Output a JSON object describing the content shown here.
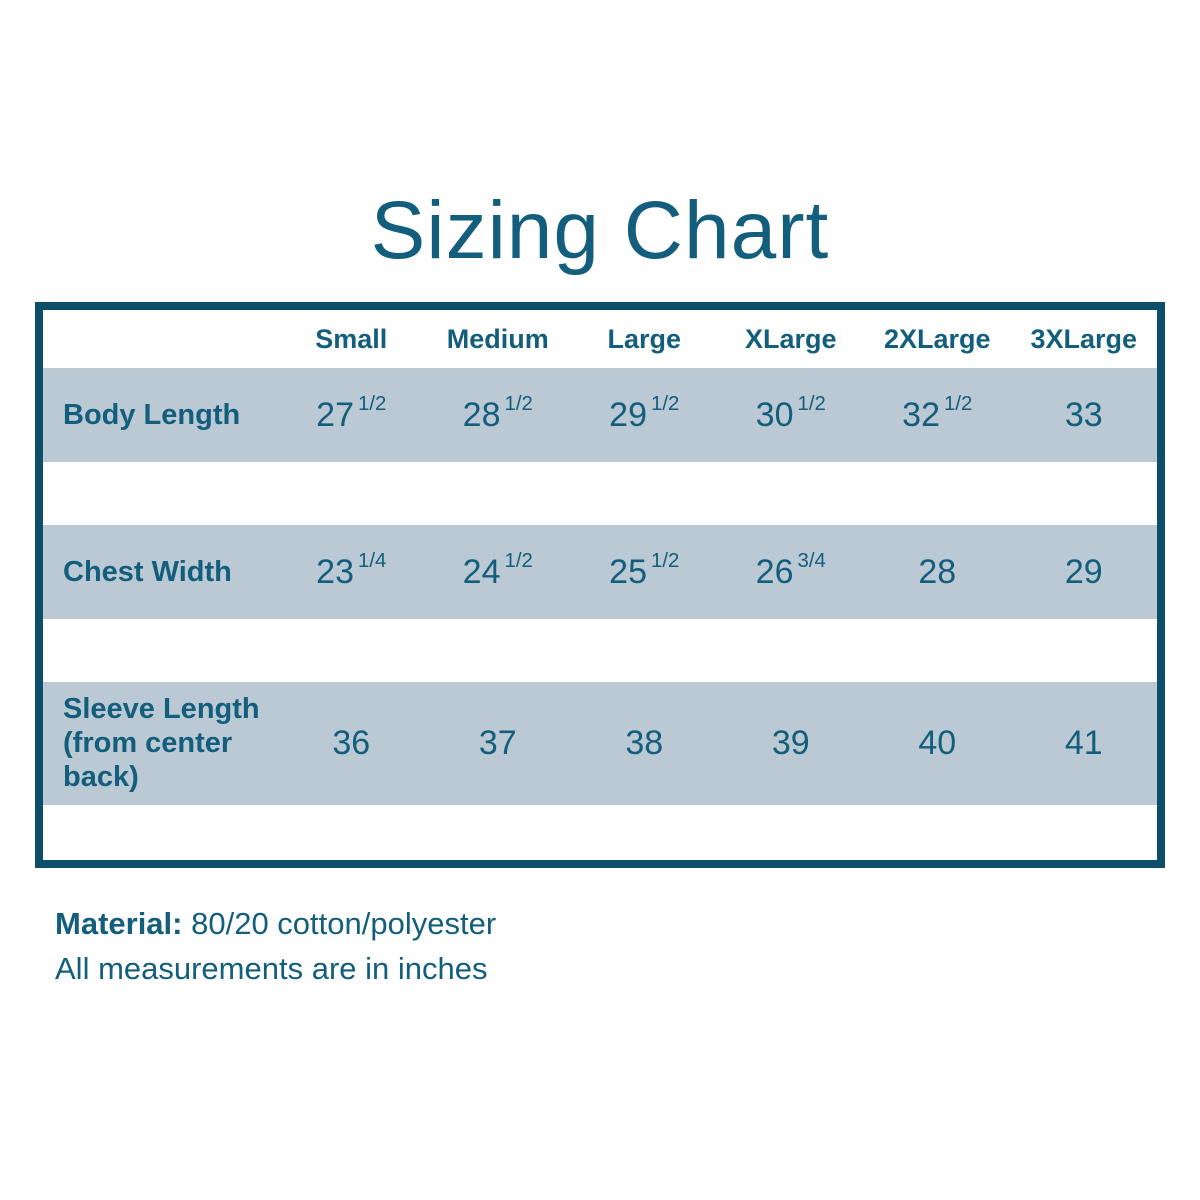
{
  "chart_data": {
    "type": "table",
    "title": "Sizing Chart",
    "columns": [
      "",
      "Small",
      "Medium",
      "Large",
      "XLarge",
      "2XLarge",
      "3XLarge"
    ],
    "rows": [
      {
        "label": "Body Length",
        "values": [
          "27 1/2",
          "28 1/2",
          "29 1/2",
          "30 1/2",
          "32 1/2",
          "33"
        ]
      },
      {
        "label": "Chest Width",
        "values": [
          "23 1/4",
          "24 1/2",
          "25 1/2",
          "26 3/4",
          "28",
          "29"
        ]
      },
      {
        "label": "Sleeve Length (from center back)",
        "values": [
          "36",
          "37",
          "38",
          "39",
          "40",
          "41"
        ]
      }
    ],
    "footnotes": {
      "material_label": "Material:",
      "material_value": "80/20 cotton/polyester",
      "units_note": "All measurements are in inches"
    },
    "units": "inches"
  },
  "colors": {
    "title_text": "#135e7c",
    "table_border": "#0d4e6b",
    "row_band": "#bac9d4"
  }
}
